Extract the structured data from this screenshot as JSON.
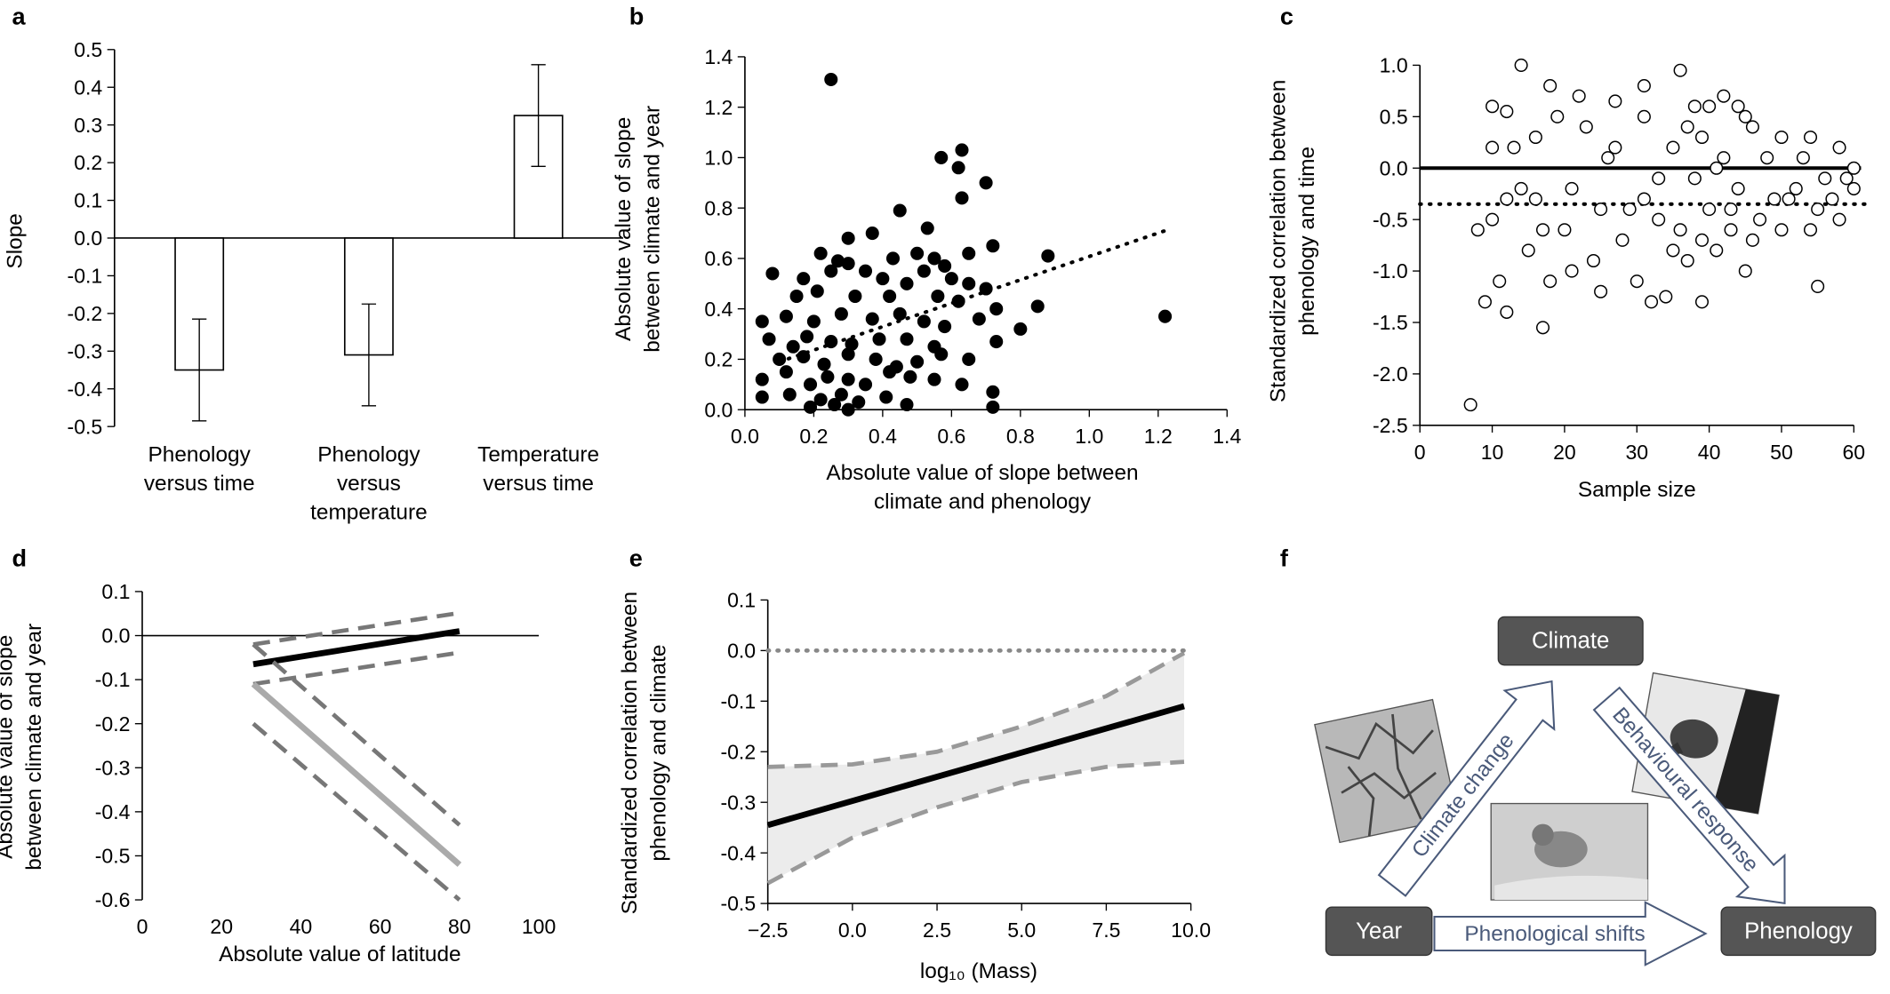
{
  "chart_data": [
    {
      "type": "bar",
      "label": "a",
      "ylabel": "Slope",
      "categories": [
        "Phenology\nversus time",
        "Phenology\nversus\ntemperature",
        "Temperature\nversus time"
      ],
      "values": [
        -0.35,
        -0.31,
        0.325
      ],
      "errors": [
        0.135,
        0.135,
        0.135
      ],
      "color": "#ffffff",
      "edge": "#000000",
      "ylim": [
        -0.5,
        0.5
      ],
      "yticks": [
        0.5,
        0.4,
        0.3,
        0.2,
        0.1,
        {
          "value": 0,
          "label": "0.0"
        },
        -0.1,
        -0.2,
        -0.3,
        -0.4,
        -0.5
      ]
    },
    {
      "type": "scatter",
      "label": "b",
      "ylabel": "Absolute value of slope\nbetween climate and year",
      "xlabel": "Absolute value of slope between\nclimate and phenology",
      "xlim": [
        0,
        1.4
      ],
      "ylim": [
        0,
        1.4
      ],
      "xticks": [
        {
          "value": 0,
          "label": "0.0"
        },
        0.2,
        0.4,
        0.6,
        0.8,
        {
          "value": 1,
          "label": "1.0"
        },
        1.2,
        1.4
      ],
      "yticks": [
        {
          "value": 0,
          "label": "0.0"
        },
        0.2,
        0.4,
        0.6,
        0.8,
        {
          "value": 1,
          "label": "1.0"
        },
        1.2,
        1.4
      ],
      "series": [
        {
          "color": "#000000",
          "marker": "filled",
          "x": [
            0.25,
            0.57,
            0.63,
            0.62,
            0.7,
            0.63,
            0.45,
            0.53,
            0.37,
            0.3,
            0.22,
            0.27,
            0.3,
            0.43,
            0.5,
            0.55,
            0.58,
            0.65,
            0.72,
            0.88,
            0.08,
            0.17,
            0.25,
            0.35,
            0.4,
            0.47,
            0.52,
            0.6,
            0.65,
            0.7,
            0.15,
            0.21,
            0.32,
            0.42,
            0.56,
            0.62,
            0.73,
            0.85,
            0.05,
            0.12,
            0.2,
            0.28,
            0.37,
            0.45,
            0.52,
            0.58,
            0.68,
            0.8,
            1.22,
            0.07,
            0.14,
            0.18,
            0.25,
            0.31,
            0.39,
            0.47,
            0.55,
            0.73,
            0.1,
            0.17,
            0.23,
            0.3,
            0.38,
            0.44,
            0.5,
            0.57,
            0.65,
            0.05,
            0.12,
            0.19,
            0.24,
            0.3,
            0.35,
            0.42,
            0.48,
            0.55,
            0.63,
            0.05,
            0.13,
            0.22,
            0.26,
            0.28,
            0.33,
            0.41,
            0.47,
            0.72,
            0.72,
            0.19,
            0.3
          ],
          "values": [
            1.31,
            1.0,
            1.03,
            0.96,
            0.9,
            0.84,
            0.79,
            0.72,
            0.7,
            0.68,
            0.62,
            0.59,
            0.58,
            0.6,
            0.62,
            0.6,
            0.57,
            0.62,
            0.65,
            0.61,
            0.54,
            0.52,
            0.55,
            0.55,
            0.52,
            0.5,
            0.55,
            0.52,
            0.5,
            0.48,
            0.45,
            0.47,
            0.45,
            0.45,
            0.45,
            0.43,
            0.4,
            0.41,
            0.35,
            0.37,
            0.35,
            0.38,
            0.36,
            0.38,
            0.35,
            0.33,
            0.36,
            0.32,
            0.37,
            0.28,
            0.25,
            0.29,
            0.27,
            0.26,
            0.28,
            0.28,
            0.25,
            0.27,
            0.2,
            0.21,
            0.18,
            0.22,
            0.2,
            0.17,
            0.19,
            0.22,
            0.2,
            0.12,
            0.15,
            0.1,
            0.13,
            0.12,
            0.1,
            0.15,
            0.13,
            0.12,
            0.1,
            0.05,
            0.06,
            0.04,
            0.02,
            0.06,
            0.03,
            0.05,
            0.02,
            0.07,
            0.01,
            0.01,
            0.0
          ]
        }
      ],
      "lines": [
        {
          "x": [
            0.1,
            1.22
          ],
          "values": [
            0.19,
            0.71
          ],
          "color": "#000000",
          "style": "dotted"
        }
      ]
    },
    {
      "type": "scatter",
      "label": "c",
      "ylabel": "Standardized correlation between\nphenology and time",
      "xlabel": "Sample size",
      "xlim": [
        0,
        60
      ],
      "ylim": [
        -2.5,
        1.0
      ],
      "xticks": [
        0,
        10,
        20,
        30,
        40,
        50,
        60
      ],
      "yticks": [
        {
          "value": 1,
          "label": "1.0"
        },
        0.5,
        {
          "value": 0,
          "label": "0.0"
        },
        -0.5,
        {
          "value": -1,
          "label": "-1.0"
        },
        -1.5,
        {
          "value": -2,
          "label": "-2.0"
        },
        -2.5
      ],
      "series": [
        {
          "color": "#000000",
          "marker": "open",
          "x": [
            7,
            14,
            36,
            17,
            55,
            10,
            12,
            18,
            22,
            27,
            31,
            38,
            42,
            45,
            50,
            54,
            58,
            10,
            12,
            11,
            15,
            16,
            18,
            20,
            21,
            24,
            25,
            26,
            28,
            30,
            31,
            32,
            33,
            34,
            35,
            36,
            37,
            38,
            39,
            39,
            40,
            41,
            42,
            43,
            44,
            45,
            46,
            47,
            49,
            50,
            52,
            53,
            55,
            56,
            57,
            58,
            59,
            60,
            13,
            14,
            16,
            17,
            19,
            21,
            23,
            25,
            27,
            29,
            31,
            33,
            35,
            37,
            39,
            40,
            41,
            43,
            44,
            46,
            48,
            51,
            54,
            60,
            8,
            9,
            10,
            12
          ],
          "values": [
            -2.3,
            1.0,
            0.95,
            -1.55,
            -1.15,
            0.6,
            0.55,
            0.8,
            0.7,
            0.65,
            0.8,
            0.6,
            0.7,
            0.5,
            0.3,
            0.3,
            0.2,
            -0.5,
            -1.4,
            -1.1,
            -0.8,
            -0.3,
            -1.1,
            -0.6,
            -0.2,
            -0.9,
            -0.4,
            0.1,
            -0.7,
            -1.1,
            -0.3,
            -1.3,
            -0.5,
            -1.25,
            0.2,
            -0.6,
            -0.9,
            -0.1,
            -1.3,
            0.3,
            -0.4,
            -0.8,
            0.1,
            -0.6,
            -0.2,
            -1.0,
            0.4,
            -0.5,
            -0.3,
            -0.6,
            -0.2,
            0.1,
            -0.4,
            -0.1,
            -0.3,
            -0.5,
            -0.1,
            -0.2,
            0.2,
            -0.2,
            0.3,
            -0.6,
            0.5,
            -1.0,
            0.4,
            -1.2,
            0.2,
            -0.4,
            0.5,
            -0.1,
            -0.8,
            0.4,
            -0.7,
            0.6,
            0.0,
            -0.4,
            0.6,
            -0.7,
            0.1,
            -0.3,
            -0.6,
            0.0,
            -0.6,
            -1.3,
            0.2,
            -0.3
          ]
        }
      ],
      "lines": [
        {
          "x": [
            0,
            61
          ],
          "values": [
            0,
            0
          ],
          "color": "#000000",
          "style": "solid"
        },
        {
          "x": [
            0,
            62
          ],
          "values": [
            -0.35,
            -0.35
          ],
          "color": "#000000",
          "style": "dotted"
        }
      ]
    },
    {
      "type": "line",
      "label": "d",
      "ylabel": "Absolute value of slope\nbetween climate and year",
      "xlabel": "Absolute value of latitude",
      "xlim": [
        0,
        100
      ],
      "ylim": [
        -0.6,
        0.1
      ],
      "xticks": [
        0,
        20,
        40,
        60,
        80,
        100
      ],
      "yticks": [
        0.1,
        {
          "value": 0,
          "label": "0.0"
        },
        -0.1,
        -0.2,
        -0.3,
        -0.4,
        -0.5,
        -0.6
      ],
      "series": [
        {
          "x": [
            28,
            80
          ],
          "values": [
            -0.065,
            0.01
          ],
          "color": "#000000",
          "style": "solid"
        },
        {
          "x": [
            28,
            79
          ],
          "values": [
            -0.02,
            0.05
          ],
          "color": "#777777",
          "style": "dashed"
        },
        {
          "x": [
            28,
            79
          ],
          "values": [
            -0.11,
            -0.04
          ],
          "color": "#777777",
          "style": "dashed"
        },
        {
          "x": [
            28,
            80
          ],
          "values": [
            -0.11,
            -0.52
          ],
          "color": "#aaaaaa",
          "style": "solid"
        },
        {
          "x": [
            28,
            80
          ],
          "values": [
            -0.02,
            -0.43
          ],
          "color": "#777777",
          "style": "dashed"
        },
        {
          "x": [
            28,
            80
          ],
          "values": [
            -0.2,
            -0.6
          ],
          "color": "#777777",
          "style": "dashed"
        }
      ]
    },
    {
      "type": "line",
      "label": "e",
      "ylabel": "Standardized correlation between\nphenology and climate",
      "xlabel": "log₁₀ (Mass)",
      "xlim": [
        -2.5,
        10
      ],
      "ylim": [
        -0.5,
        0.1
      ],
      "band": true,
      "band_color": "#ececec",
      "xticks": [
        {
          "value": -2.5,
          "label": "−2.5"
        },
        {
          "value": 0,
          "label": "0.0"
        },
        2.5,
        {
          "value": 5,
          "label": "5.0"
        },
        7.5,
        {
          "value": 10,
          "label": "10.0"
        }
      ],
      "yticks": [
        0.1,
        {
          "value": 0,
          "label": "0.0"
        },
        -0.1,
        -0.2,
        -0.3,
        -0.4,
        -0.5
      ],
      "series": [
        {
          "x": [
            -2.5,
            9.8
          ],
          "values": [
            -0.345,
            -0.11
          ],
          "color": "#000000",
          "style": "solid"
        },
        {
          "x": [
            -2.5,
            0,
            2.5,
            5,
            7.5,
            9.8
          ],
          "values": [
            -0.23,
            -0.225,
            -0.2,
            -0.15,
            -0.09,
            -0.005
          ],
          "color": "#999999",
          "style": "dashed"
        },
        {
          "x": [
            -2.5,
            0,
            2.5,
            5,
            7.5,
            9.8
          ],
          "values": [
            -0.46,
            -0.37,
            -0.31,
            -0.26,
            -0.23,
            -0.22
          ],
          "color": "#999999",
          "style": "dashed"
        },
        {
          "x": [
            -2.5,
            10
          ],
          "values": [
            0,
            0
          ],
          "color": "#888888",
          "style": "dotted"
        }
      ]
    }
  ],
  "diagram": {
    "label": "f",
    "nodes": [
      "Climate",
      "Year",
      "Phenology"
    ],
    "arrows": [
      "Climate change",
      "Behavioural response",
      "Phenological shifts"
    ]
  }
}
